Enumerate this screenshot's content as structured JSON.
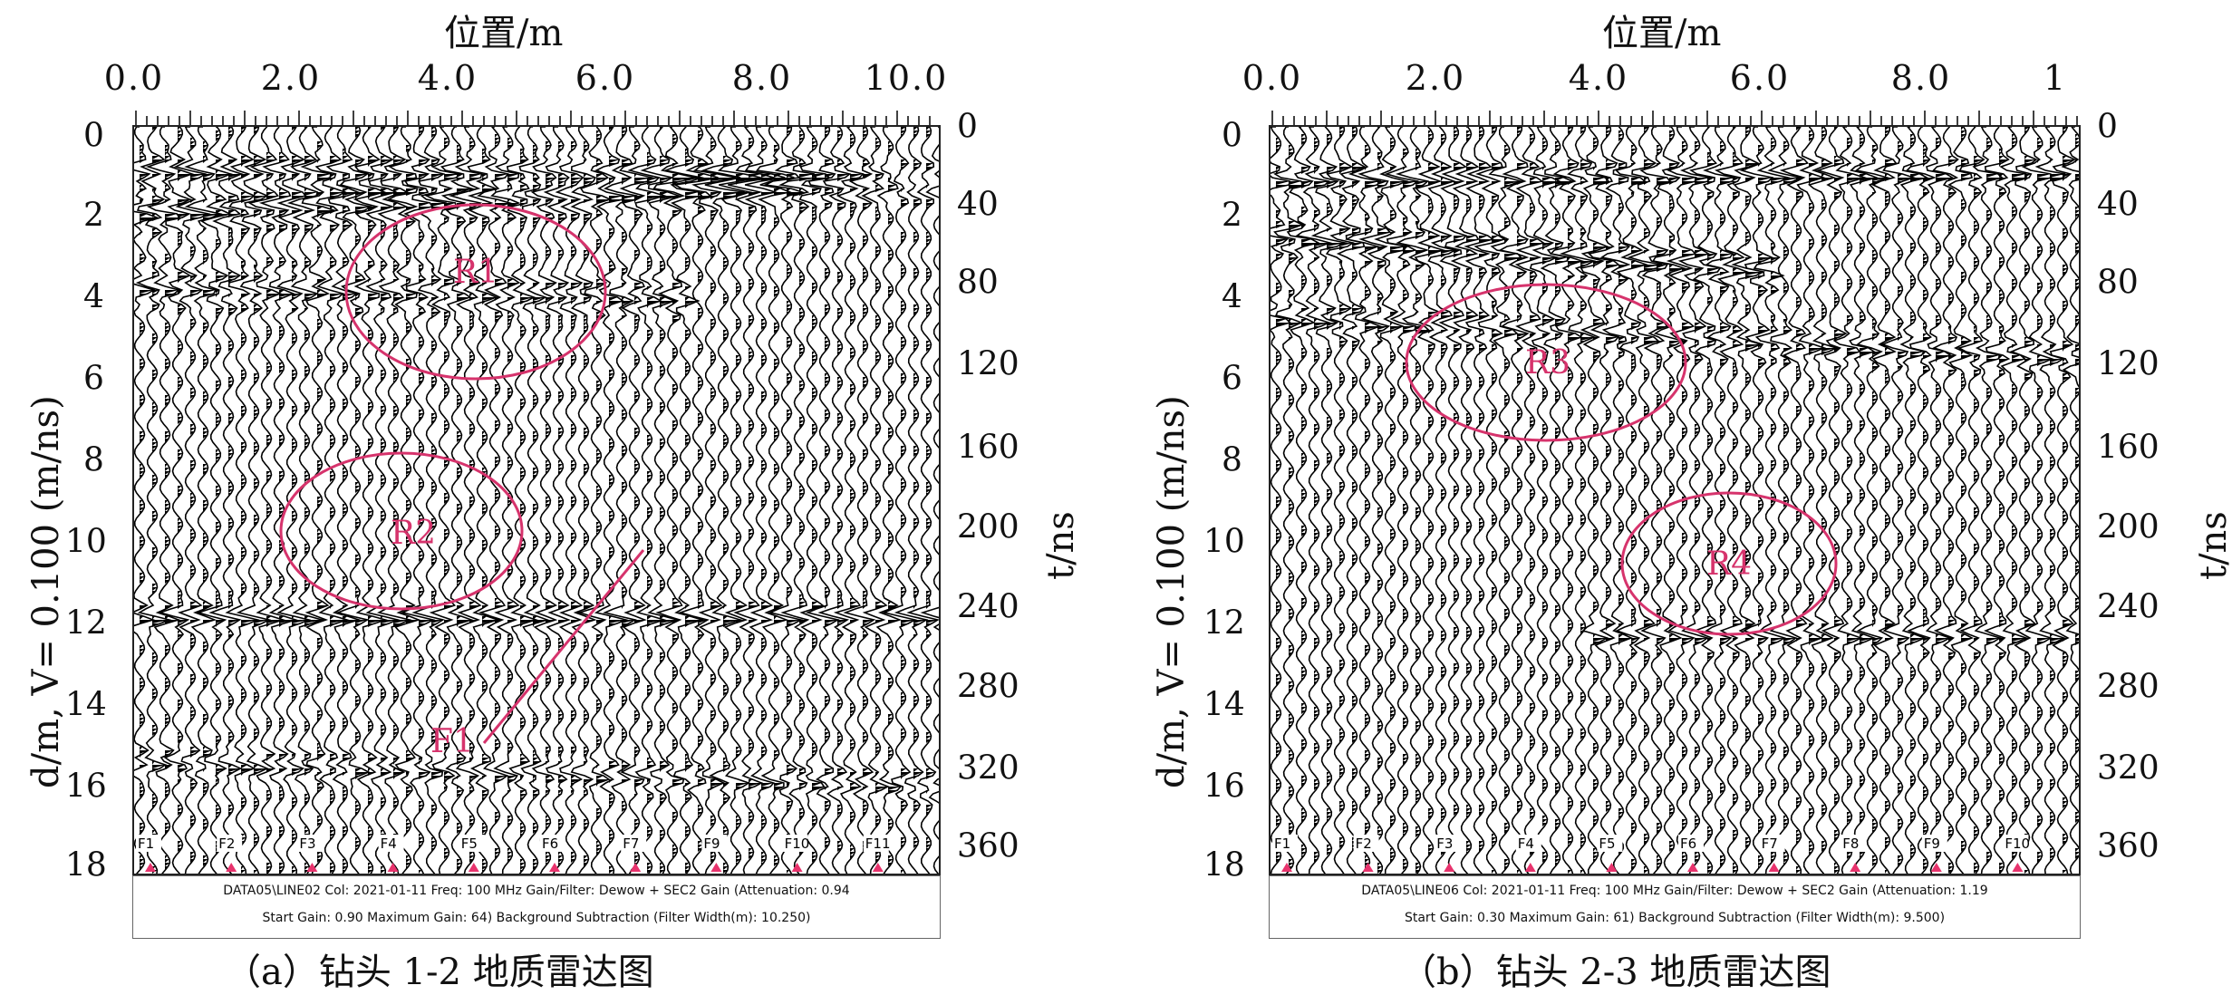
{
  "panels": [
    {
      "id": "a",
      "x_title": "位置/m",
      "x_ticks": [
        "0.0",
        "2.0",
        "4.0",
        "6.0",
        "8.0",
        "10.0"
      ],
      "depth_ticks": [
        "0",
        "2",
        "4",
        "6",
        "8",
        "10",
        "12",
        "14",
        "16",
        "18"
      ],
      "time_ticks": [
        "0",
        "40",
        "80",
        "120",
        "160",
        "200",
        "240",
        "280",
        "320",
        "360"
      ],
      "left_axis_label": "d/m, V= 0.100 (m/ns)",
      "right_axis_label": "t/ns",
      "markers": [
        "F1",
        "F2",
        "F3",
        "F4",
        "F5",
        "F6",
        "F7",
        "F9",
        "F10",
        "F11"
      ],
      "annotations": [
        {
          "label": "R1",
          "shape": "ellipse"
        },
        {
          "label": "R2",
          "shape": "ellipse"
        },
        {
          "label": "F1",
          "shape": "line"
        }
      ],
      "info_line1": "DATA05\\LINE02  Col: 2021-01-11  Freq: 100 MHz Gain/Filter: Dewow + SEC2 Gain (Attenuation: 0.94",
      "info_line2": "Start Gain: 0.90 Maximum Gain: 64) Background Subtraction (Filter Width(m): 10.250)",
      "caption": "（a）钻头 1-2 地质雷达图"
    },
    {
      "id": "b",
      "x_title": "位置/m",
      "x_ticks": [
        "0.0",
        "2.0",
        "4.0",
        "6.0",
        "8.0",
        "1"
      ],
      "depth_ticks": [
        "0",
        "2",
        "4",
        "6",
        "8",
        "10",
        "12",
        "14",
        "16",
        "18"
      ],
      "time_ticks": [
        "0",
        "40",
        "80",
        "120",
        "160",
        "200",
        "240",
        "280",
        "320",
        "360"
      ],
      "left_axis_label": "d/m, V= 0.100 (m/ns)",
      "right_axis_label": "t/ns",
      "markers": [
        "F1",
        "F2",
        "F3",
        "F4",
        "F5",
        "F6",
        "F7",
        "F8",
        "F9",
        "F10"
      ],
      "annotations": [
        {
          "label": "R3",
          "shape": "ellipse"
        },
        {
          "label": "R4",
          "shape": "ellipse"
        }
      ],
      "info_line1": "DATA05\\LINE06  Col: 2021-01-11  Freq: 100 MHz Gain/Filter: Dewow + SEC2 Gain (Attenuation: 1.19",
      "info_line2": "Start Gain: 0.30 Maximum Gain: 61) Background Subtraction (Filter Width(m): 9.500)",
      "caption": "（b）钻头 2-3 地质雷达图"
    }
  ],
  "colors": {
    "annotation": "#d6336c",
    "trace": "#000000",
    "marker": "#e8336d"
  }
}
